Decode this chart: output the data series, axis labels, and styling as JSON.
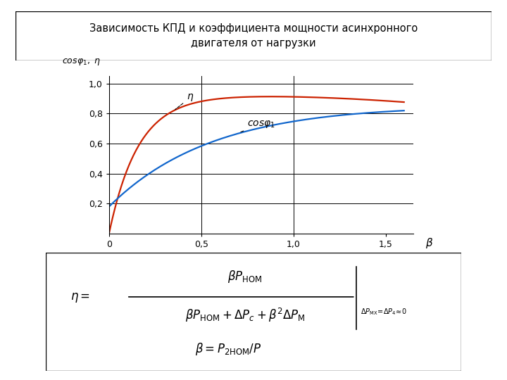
{
  "title": "Зависимость КПД и коэффициента мощности асинхронного\nдвигателя от нагрузки",
  "xlim": [
    0,
    1.65
  ],
  "ylim": [
    0,
    1.05
  ],
  "xticks": [
    0,
    0.5,
    1.0,
    1.5
  ],
  "yticks": [
    0.2,
    0.4,
    0.6,
    0.8,
    1.0
  ],
  "xticklabels": [
    "0",
    "0,5",
    "1,0",
    "1,5"
  ],
  "yticklabels": [
    "0,2",
    "0,4",
    "0,6",
    "0,8",
    "1,0"
  ],
  "eta_color": "#cc2200",
  "cos_color": "#1166cc",
  "background_color": "#ffffff",
  "grid_vlines": [
    0.5,
    1.0
  ],
  "grid_hlines": [
    0.2,
    0.4,
    0.6,
    0.8,
    1.0
  ]
}
